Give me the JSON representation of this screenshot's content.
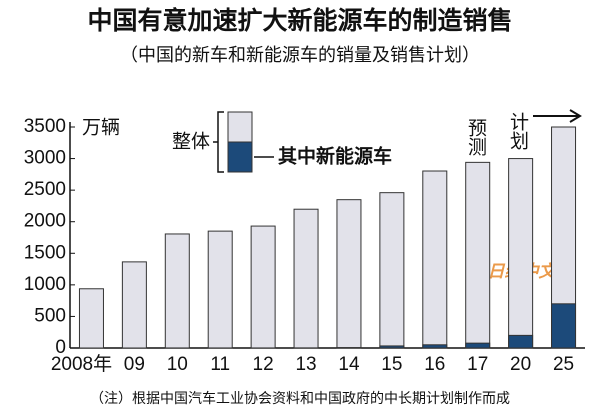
{
  "chart_data": {
    "type": "bar",
    "title": "中国有意加速扩大新能源车的制造销售",
    "subtitle": "（中国的新车和新能源车的销量及销售计划）",
    "y_label": "万辆",
    "annotations": [
      "预测",
      "计划"
    ],
    "watermark": "日经中文网",
    "footnote": "（注）根据中国汽车工业协会资料和中国政府的中长期计划制作而成",
    "categories": [
      "2008年",
      "09",
      "10",
      "11",
      "12",
      "13",
      "14",
      "15",
      "16",
      "17",
      "20",
      "25"
    ],
    "series": [
      {
        "name": "整体",
        "color": "#e2e2ea",
        "values": [
          938,
          1364,
          1806,
          1851,
          1931,
          2198,
          2349,
          2460,
          2803,
          2940,
          3000,
          3500
        ]
      },
      {
        "name": "其中新能源车",
        "color": "#1c4a7a",
        "values": [
          0,
          0,
          1,
          1,
          1,
          2,
          7,
          33,
          51,
          77,
          200,
          700
        ]
      }
    ],
    "ylim": [
      0,
      3500
    ],
    "yticks": [
      0,
      500,
      1000,
      1500,
      2000,
      2500,
      3000,
      3500
    ]
  }
}
